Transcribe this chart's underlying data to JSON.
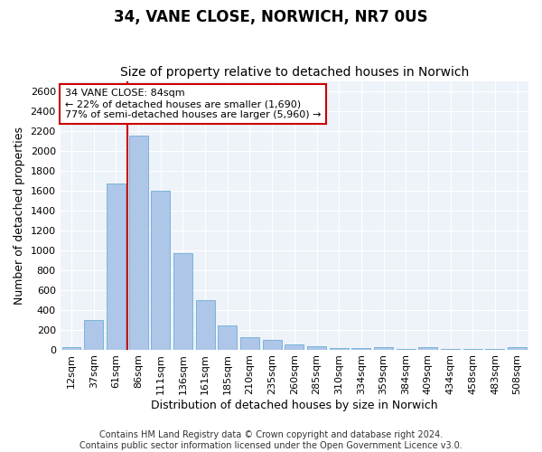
{
  "title": "34, VANE CLOSE, NORWICH, NR7 0US",
  "subtitle": "Size of property relative to detached houses in Norwich",
  "xlabel": "Distribution of detached houses by size in Norwich",
  "ylabel": "Number of detached properties",
  "categories": [
    "12sqm",
    "37sqm",
    "61sqm",
    "86sqm",
    "111sqm",
    "136sqm",
    "161sqm",
    "185sqm",
    "210sqm",
    "235sqm",
    "260sqm",
    "285sqm",
    "310sqm",
    "334sqm",
    "359sqm",
    "384sqm",
    "409sqm",
    "434sqm",
    "458sqm",
    "483sqm",
    "508sqm"
  ],
  "values": [
    25,
    300,
    1670,
    2150,
    1600,
    970,
    500,
    245,
    125,
    100,
    50,
    30,
    15,
    10,
    20,
    5,
    20,
    5,
    5,
    5,
    25
  ],
  "bar_color": "#aec6e8",
  "bar_edge_color": "#6baed6",
  "vline_x_index": 3,
  "vline_color": "#cc0000",
  "annotation_text_line1": "34 VANE CLOSE: 84sqm",
  "annotation_text_line2": "← 22% of detached houses are smaller (1,690)",
  "annotation_text_line3": "77% of semi-detached houses are larger (5,960) →",
  "annotation_box_facecolor": "#ffffff",
  "annotation_box_edgecolor": "#cc0000",
  "ylim": [
    0,
    2700
  ],
  "yticks": [
    0,
    200,
    400,
    600,
    800,
    1000,
    1200,
    1400,
    1600,
    1800,
    2000,
    2200,
    2400,
    2600
  ],
  "footer_line1": "Contains HM Land Registry data © Crown copyright and database right 2024.",
  "footer_line2": "Contains public sector information licensed under the Open Government Licence v3.0.",
  "background_color": "#eef2f9",
  "grid_color": "#ffffff",
  "fig_facecolor": "#ffffff",
  "title_fontsize": 12,
  "subtitle_fontsize": 10,
  "axis_label_fontsize": 9,
  "tick_fontsize": 8,
  "annotation_fontsize": 8,
  "footer_fontsize": 7
}
